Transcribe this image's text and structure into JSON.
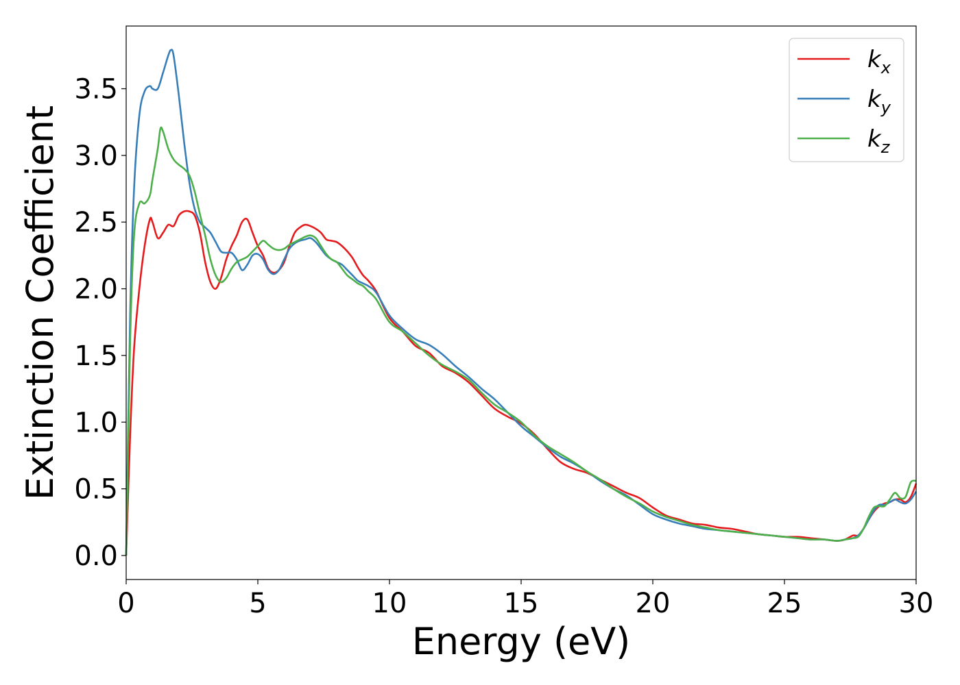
{
  "chart_data": {
    "type": "line",
    "xlabel": "Energy (eV)",
    "ylabel": "Extinction Coefficient",
    "xlim": [
      0,
      30
    ],
    "ylim": [
      -0.18,
      3.97
    ],
    "xticks": [
      0,
      5,
      10,
      15,
      20,
      25,
      30
    ],
    "xtick_labels": [
      "0",
      "5",
      "10",
      "15",
      "20",
      "25",
      "30"
    ],
    "yticks": [
      0.0,
      0.5,
      1.0,
      1.5,
      2.0,
      2.5,
      3.0,
      3.5
    ],
    "ytick_labels": [
      "0.0",
      "0.5",
      "1.0",
      "1.5",
      "2.0",
      "2.5",
      "3.0",
      "3.5"
    ],
    "grid": false,
    "legend_position": "top-right",
    "series": [
      {
        "name": "k",
        "subscript": "x",
        "color": "#e41a1c",
        "x": [
          0,
          0.15,
          0.3,
          0.5,
          0.7,
          0.9,
          1.0,
          1.2,
          1.4,
          1.6,
          1.8,
          2.0,
          2.2,
          2.4,
          2.6,
          2.8,
          3.0,
          3.2,
          3.4,
          3.6,
          3.8,
          4.0,
          4.2,
          4.4,
          4.6,
          4.8,
          5.0,
          5.2,
          5.4,
          5.6,
          5.8,
          6.0,
          6.2,
          6.4,
          6.6,
          6.8,
          7.0,
          7.2,
          7.4,
          7.6,
          7.8,
          8.0,
          8.2,
          8.4,
          8.6,
          8.8,
          9.0,
          9.2,
          9.5,
          10.0,
          10.5,
          11.0,
          11.5,
          12.0,
          12.5,
          13.0,
          13.5,
          14.0,
          14.5,
          15.0,
          15.5,
          16.0,
          16.5,
          17.0,
          17.5,
          18.0,
          18.5,
          19.0,
          19.5,
          20.0,
          20.5,
          21.0,
          21.5,
          22.0,
          22.5,
          23.0,
          23.5,
          24.0,
          24.5,
          25.0,
          25.5,
          26.0,
          26.5,
          27.0,
          27.3,
          27.6,
          27.8,
          28.0,
          28.2,
          28.4,
          28.6,
          28.8,
          29.0,
          29.2,
          29.4,
          29.6,
          29.8,
          30.0
        ],
        "values": [
          0.0,
          0.9,
          1.55,
          2.0,
          2.32,
          2.52,
          2.5,
          2.38,
          2.42,
          2.48,
          2.47,
          2.55,
          2.58,
          2.58,
          2.55,
          2.42,
          2.2,
          2.05,
          2.0,
          2.08,
          2.22,
          2.32,
          2.4,
          2.5,
          2.52,
          2.42,
          2.32,
          2.25,
          2.15,
          2.12,
          2.14,
          2.2,
          2.32,
          2.42,
          2.46,
          2.48,
          2.47,
          2.45,
          2.42,
          2.37,
          2.36,
          2.35,
          2.32,
          2.28,
          2.23,
          2.16,
          2.1,
          2.06,
          1.98,
          1.78,
          1.68,
          1.57,
          1.52,
          1.42,
          1.37,
          1.3,
          1.2,
          1.1,
          1.04,
          0.99,
          0.91,
          0.8,
          0.7,
          0.65,
          0.62,
          0.57,
          0.52,
          0.47,
          0.43,
          0.36,
          0.3,
          0.27,
          0.24,
          0.23,
          0.21,
          0.2,
          0.18,
          0.16,
          0.15,
          0.14,
          0.14,
          0.13,
          0.12,
          0.11,
          0.12,
          0.15,
          0.15,
          0.2,
          0.27,
          0.33,
          0.37,
          0.39,
          0.4,
          0.42,
          0.42,
          0.4,
          0.44,
          0.54
        ]
      },
      {
        "name": "k",
        "subscript": "y",
        "color": "#377eb8",
        "x": [
          0,
          0.15,
          0.3,
          0.5,
          0.7,
          0.9,
          1.0,
          1.2,
          1.4,
          1.6,
          1.7,
          1.8,
          2.0,
          2.2,
          2.4,
          2.6,
          2.8,
          3.0,
          3.2,
          3.4,
          3.6,
          3.8,
          4.0,
          4.2,
          4.4,
          4.6,
          4.8,
          5.0,
          5.2,
          5.4,
          5.6,
          5.8,
          6.0,
          6.2,
          6.4,
          6.6,
          6.8,
          7.0,
          7.2,
          7.4,
          7.6,
          7.8,
          8.0,
          8.2,
          8.4,
          8.6,
          8.8,
          9.0,
          9.2,
          9.5,
          10.0,
          10.5,
          11.0,
          11.5,
          12.0,
          12.5,
          13.0,
          13.5,
          14.0,
          14.5,
          15.0,
          15.5,
          16.0,
          16.5,
          17.0,
          17.5,
          18.0,
          18.5,
          19.0,
          19.5,
          20.0,
          20.5,
          21.0,
          21.5,
          22.0,
          22.5,
          23.0,
          23.5,
          24.0,
          24.5,
          25.0,
          25.5,
          26.0,
          26.5,
          27.0,
          27.3,
          27.6,
          27.8,
          28.0,
          28.2,
          28.4,
          28.6,
          28.8,
          29.0,
          29.2,
          29.4,
          29.6,
          29.8,
          30.0
        ],
        "values": [
          0.0,
          1.8,
          2.75,
          3.3,
          3.48,
          3.52,
          3.5,
          3.5,
          3.62,
          3.75,
          3.79,
          3.75,
          3.45,
          3.1,
          2.8,
          2.6,
          2.5,
          2.46,
          2.42,
          2.35,
          2.28,
          2.27,
          2.27,
          2.22,
          2.14,
          2.18,
          2.25,
          2.26,
          2.22,
          2.14,
          2.11,
          2.14,
          2.22,
          2.3,
          2.34,
          2.36,
          2.37,
          2.38,
          2.35,
          2.3,
          2.25,
          2.22,
          2.2,
          2.18,
          2.14,
          2.1,
          2.06,
          2.04,
          2.02,
          1.97,
          1.8,
          1.7,
          1.62,
          1.58,
          1.51,
          1.42,
          1.34,
          1.25,
          1.17,
          1.07,
          0.97,
          0.89,
          0.81,
          0.74,
          0.69,
          0.63,
          0.56,
          0.5,
          0.45,
          0.38,
          0.31,
          0.27,
          0.24,
          0.22,
          0.2,
          0.19,
          0.18,
          0.17,
          0.16,
          0.15,
          0.14,
          0.13,
          0.12,
          0.12,
          0.11,
          0.12,
          0.13,
          0.15,
          0.2,
          0.27,
          0.34,
          0.38,
          0.38,
          0.4,
          0.42,
          0.4,
          0.39,
          0.42,
          0.48
        ]
      },
      {
        "name": "k",
        "subscript": "z",
        "color": "#4daf4a",
        "x": [
          0,
          0.15,
          0.3,
          0.5,
          0.7,
          0.9,
          1.0,
          1.2,
          1.3,
          1.4,
          1.6,
          1.8,
          2.0,
          2.2,
          2.4,
          2.6,
          2.8,
          3.0,
          3.2,
          3.4,
          3.6,
          3.8,
          4.0,
          4.2,
          4.4,
          4.6,
          4.8,
          5.0,
          5.2,
          5.4,
          5.6,
          5.8,
          6.0,
          6.2,
          6.4,
          6.6,
          6.8,
          7.0,
          7.2,
          7.4,
          7.6,
          7.8,
          8.0,
          8.2,
          8.4,
          8.6,
          8.8,
          9.0,
          9.2,
          9.5,
          10.0,
          10.5,
          11.0,
          11.5,
          12.0,
          12.5,
          13.0,
          13.5,
          14.0,
          14.5,
          15.0,
          15.5,
          16.0,
          16.5,
          17.0,
          17.5,
          18.0,
          18.5,
          19.0,
          19.5,
          20.0,
          20.5,
          21.0,
          21.5,
          22.0,
          22.5,
          23.0,
          23.5,
          24.0,
          24.5,
          25.0,
          25.5,
          26.0,
          26.5,
          27.0,
          27.3,
          27.6,
          27.8,
          28.0,
          28.2,
          28.4,
          28.6,
          28.8,
          29.0,
          29.2,
          29.4,
          29.6,
          29.8,
          30.0
        ],
        "values": [
          0.0,
          1.6,
          2.4,
          2.64,
          2.64,
          2.7,
          2.82,
          3.05,
          3.2,
          3.18,
          3.05,
          2.97,
          2.93,
          2.9,
          2.85,
          2.73,
          2.56,
          2.4,
          2.22,
          2.1,
          2.05,
          2.08,
          2.15,
          2.2,
          2.22,
          2.24,
          2.28,
          2.32,
          2.36,
          2.33,
          2.3,
          2.29,
          2.3,
          2.33,
          2.35,
          2.37,
          2.39,
          2.4,
          2.38,
          2.32,
          2.26,
          2.22,
          2.2,
          2.15,
          2.1,
          2.07,
          2.04,
          2.02,
          1.98,
          1.92,
          1.75,
          1.68,
          1.59,
          1.5,
          1.43,
          1.38,
          1.32,
          1.22,
          1.13,
          1.07,
          1.0,
          0.9,
          0.82,
          0.76,
          0.7,
          0.63,
          0.57,
          0.5,
          0.44,
          0.39,
          0.33,
          0.29,
          0.26,
          0.23,
          0.21,
          0.19,
          0.18,
          0.17,
          0.16,
          0.15,
          0.14,
          0.13,
          0.12,
          0.12,
          0.11,
          0.12,
          0.13,
          0.14,
          0.2,
          0.29,
          0.36,
          0.37,
          0.37,
          0.42,
          0.47,
          0.43,
          0.44,
          0.55,
          0.56
        ]
      }
    ]
  }
}
